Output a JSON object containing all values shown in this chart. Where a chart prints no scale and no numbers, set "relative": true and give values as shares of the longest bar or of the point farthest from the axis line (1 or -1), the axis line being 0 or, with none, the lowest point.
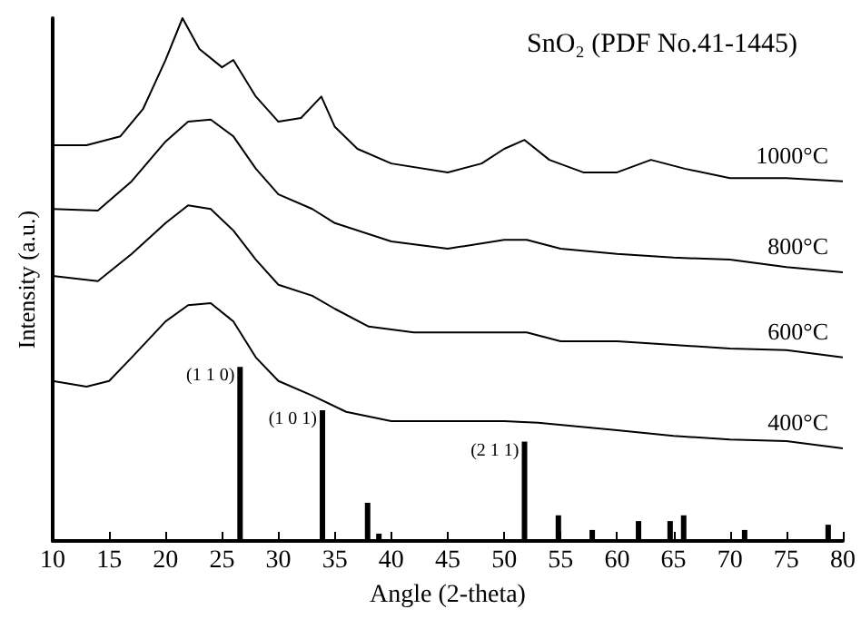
{
  "chart_data": {
    "type": "line",
    "relative": true,
    "xlabel": "Angle (2-theta)",
    "ylabel": "Intensity (a.u.)",
    "annotations": [
      "SnO₂ (PDF No.41-1445)",
      {
        "text": "(1 1 0)",
        "x": 26.6,
        "y": 0.333
      },
      {
        "text": "(1 0 1)",
        "x": 33.9,
        "y": 0.25
      },
      {
        "text": "(2 1 1)",
        "x": 51.8,
        "y": 0.19
      }
    ],
    "xlim": [
      10,
      80
    ],
    "xticks": [
      10,
      15,
      20,
      25,
      30,
      35,
      40,
      45,
      50,
      55,
      60,
      65,
      70,
      75,
      80
    ],
    "grid": false,
    "legend": false,
    "line_style": "solid",
    "series": [
      {
        "name": "1000°C",
        "color": "#000000",
        "x": [
          10,
          13,
          16,
          18,
          20,
          21.5,
          23,
          25,
          26,
          28,
          30,
          32,
          33.8,
          35,
          37,
          40,
          45,
          48,
          50,
          51.8,
          54,
          57,
          60,
          63,
          66,
          70,
          75,
          80
        ],
        "values": [
          0.757,
          0.757,
          0.774,
          0.826,
          0.92,
          1.0,
          0.941,
          0.906,
          0.92,
          0.85,
          0.802,
          0.809,
          0.85,
          0.792,
          0.75,
          0.722,
          0.705,
          0.722,
          0.75,
          0.767,
          0.729,
          0.705,
          0.705,
          0.729,
          0.712,
          0.694,
          0.694,
          0.688
        ]
      },
      {
        "name": "800°C",
        "color": "#000000",
        "x": [
          10,
          14,
          17,
          20,
          22,
          24,
          26,
          28,
          30,
          33,
          35,
          40,
          45,
          50,
          52,
          55,
          60,
          65,
          70,
          75,
          80
        ],
        "values": [
          0.635,
          0.632,
          0.688,
          0.764,
          0.802,
          0.806,
          0.774,
          0.712,
          0.663,
          0.635,
          0.608,
          0.573,
          0.559,
          0.576,
          0.576,
          0.559,
          0.549,
          0.542,
          0.538,
          0.524,
          0.514
        ]
      },
      {
        "name": "600°C",
        "color": "#000000",
        "x": [
          10,
          14,
          17,
          20,
          22,
          24,
          26,
          28,
          30,
          33,
          35,
          38,
          42,
          46,
          50,
          52,
          55,
          60,
          65,
          70,
          75,
          80
        ],
        "values": [
          0.507,
          0.497,
          0.549,
          0.608,
          0.642,
          0.635,
          0.594,
          0.538,
          0.49,
          0.469,
          0.444,
          0.41,
          0.399,
          0.399,
          0.399,
          0.399,
          0.382,
          0.382,
          0.375,
          0.368,
          0.365,
          0.351
        ]
      },
      {
        "name": "400°C",
        "color": "#000000",
        "x": [
          10,
          13,
          15,
          17,
          20,
          22,
          24,
          26,
          28,
          30,
          33,
          36,
          40,
          45,
          50,
          53,
          60,
          65,
          70,
          75,
          80
        ],
        "values": [
          0.306,
          0.295,
          0.306,
          0.351,
          0.42,
          0.451,
          0.455,
          0.42,
          0.351,
          0.306,
          0.278,
          0.247,
          0.229,
          0.229,
          0.229,
          0.226,
          0.212,
          0.201,
          0.194,
          0.191,
          0.177
        ]
      },
      {
        "type": "bar",
        "color": "#000000",
        "x": [
          26.6,
          33.9,
          37.9,
          38.9,
          51.8,
          54.8,
          57.8,
          61.9,
          64.7,
          65.9,
          71.3,
          78.7
        ],
        "values": [
          0.333,
          0.25,
          0.073,
          0.014,
          0.19,
          0.049,
          0.021,
          0.038,
          0.038,
          0.049,
          0.021,
          0.031
        ]
      }
    ]
  }
}
